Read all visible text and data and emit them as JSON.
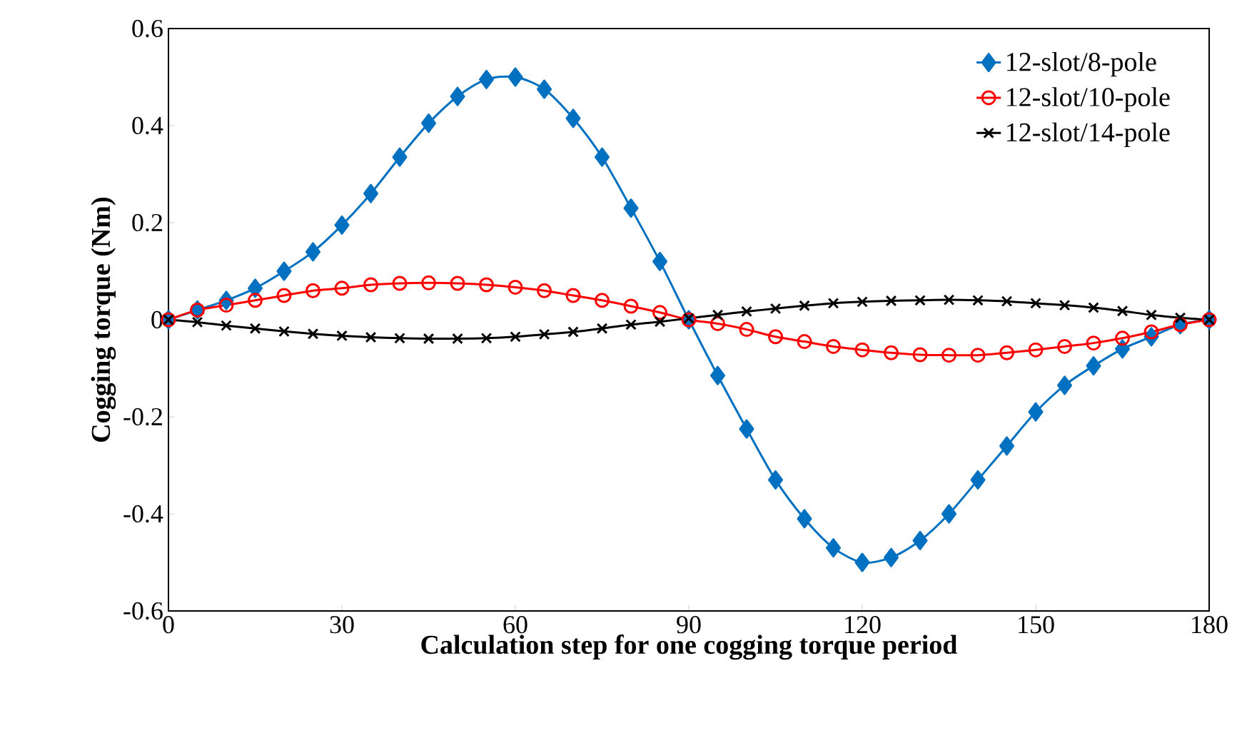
{
  "chart_data": {
    "type": "line",
    "xlabel": "Calculation step for one cogging torque period",
    "ylabel": "Cogging torque (Nm)",
    "x": [
      0,
      5,
      10,
      15,
      20,
      25,
      30,
      35,
      40,
      45,
      50,
      55,
      60,
      65,
      70,
      75,
      80,
      85,
      90,
      95,
      100,
      105,
      110,
      115,
      120,
      125,
      130,
      135,
      140,
      145,
      150,
      155,
      160,
      165,
      170,
      175,
      180
    ],
    "series": [
      {
        "name": "12-slot/8-pole",
        "color": "#0070c0",
        "marker": "diamond",
        "values": [
          0,
          0.02,
          0.04,
          0.065,
          0.1,
          0.14,
          0.195,
          0.26,
          0.335,
          0.405,
          0.46,
          0.495,
          0.5,
          0.475,
          0.415,
          0.335,
          0.23,
          0.12,
          0,
          -0.115,
          -0.225,
          -0.33,
          -0.41,
          -0.47,
          -0.5,
          -0.49,
          -0.455,
          -0.4,
          -0.33,
          -0.26,
          -0.19,
          -0.135,
          -0.095,
          -0.06,
          -0.035,
          -0.01,
          0
        ]
      },
      {
        "name": "12-slot/10-pole",
        "color": "#ff0000",
        "marker": "circle",
        "values": [
          0,
          0.02,
          0.03,
          0.04,
          0.05,
          0.06,
          0.065,
          0.072,
          0.075,
          0.076,
          0.075,
          0.072,
          0.067,
          0.06,
          0.05,
          0.04,
          0.028,
          0.015,
          0,
          -0.008,
          -0.02,
          -0.035,
          -0.045,
          -0.055,
          -0.062,
          -0.068,
          -0.072,
          -0.073,
          -0.073,
          -0.068,
          -0.062,
          -0.055,
          -0.048,
          -0.038,
          -0.025,
          -0.01,
          0
        ]
      },
      {
        "name": "12-slot/14-pole",
        "color": "#000000",
        "marker": "cross",
        "values": [
          0,
          -0.005,
          -0.012,
          -0.018,
          -0.024,
          -0.029,
          -0.033,
          -0.036,
          -0.038,
          -0.039,
          -0.039,
          -0.038,
          -0.035,
          -0.03,
          -0.025,
          -0.018,
          -0.01,
          -0.004,
          0.003,
          0.01,
          0.017,
          0.023,
          0.029,
          0.034,
          0.037,
          0.039,
          0.04,
          0.041,
          0.04,
          0.038,
          0.034,
          0.03,
          0.025,
          0.018,
          0.01,
          0.004,
          0
        ]
      }
    ],
    "xlim": [
      0,
      180
    ],
    "xticks": [
      0,
      30,
      60,
      90,
      120,
      150,
      180
    ],
    "ylim": [
      -0.6,
      0.6
    ],
    "yticks": [
      {
        "value": -0.6,
        "label": "-0.6"
      },
      {
        "value": -0.4,
        "label": "-0.4"
      },
      {
        "value": -0.2,
        "label": "-0.2"
      },
      {
        "value": 0,
        "label": "0"
      },
      {
        "value": 0.2,
        "label": "0.2"
      },
      {
        "value": 0.4,
        "label": "0.4"
      },
      {
        "value": 0.6,
        "label": "0.6"
      }
    ],
    "grid": false,
    "legend": "top right",
    "line_style": "solid"
  }
}
